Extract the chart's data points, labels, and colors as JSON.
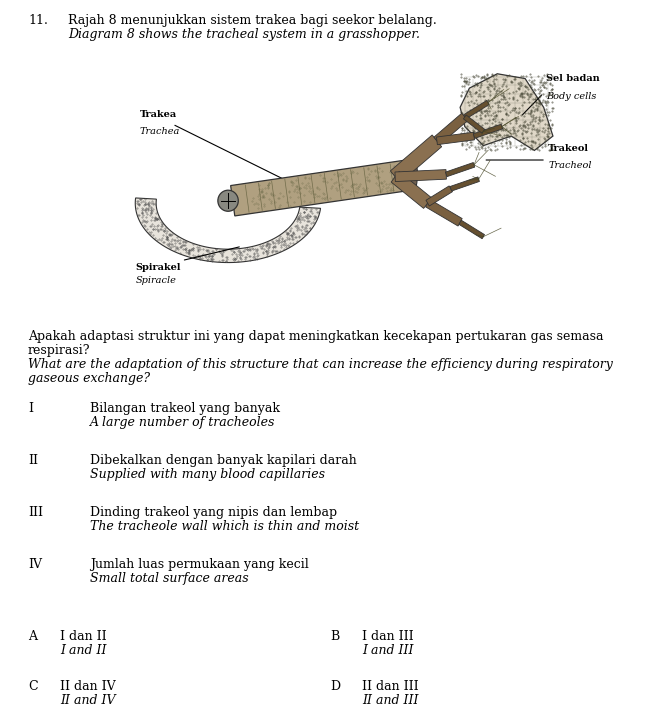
{
  "bg_color": "#ffffff",
  "page_bg": "#f5f0e8",
  "question_number": "11.",
  "title_malay": "Rajah 8 menunjukkan sistem trakea bagi seekor belalang.",
  "title_english": "Diagram 8 shows the tracheal system in a grasshopper.",
  "question_malay_line1": "Apakah adaptasi struktur ini yang dapat meningkatkan kecekapan pertukaran gas semasa",
  "question_malay_line2": "respirasi?",
  "question_english_line1": "What are the adaptation of this structure that can increase the efficiency during respiratory",
  "question_english_line2": "gaseous exchange?",
  "options": [
    {
      "roman": "I",
      "text_malay": "Bilangan trakeol yang banyak",
      "text_english": "A large number of tracheoles"
    },
    {
      "roman": "II",
      "text_malay": "Dibekalkan dengan banyak kapilari darah",
      "text_english": "Supplied with many blood capillaries"
    },
    {
      "roman": "III",
      "text_malay": "Dinding trakeol yang nipis dan lembap",
      "text_english": "The tracheole wall which is thin and moist"
    },
    {
      "roman": "IV",
      "text_malay": "Jumlah luas permukaan yang kecil",
      "text_english": "Small total surface areas"
    }
  ],
  "answers": [
    {
      "letter": "A",
      "text_malay": "I dan II",
      "text_english": "I and II",
      "col": 0
    },
    {
      "letter": "B",
      "text_malay": "I dan III",
      "text_english": "I and III",
      "col": 1
    },
    {
      "letter": "C",
      "text_malay": "II dan IV",
      "text_english": "II and IV",
      "col": 0
    },
    {
      "letter": "D",
      "text_malay": "II dan III",
      "text_english": "II and III",
      "col": 1
    }
  ],
  "diagram": {
    "trakea_label": "Trakea",
    "trachea_label": "Trachea",
    "spirakel_label": "Spirakel",
    "spiracle_label": "Spiracle",
    "sel_badan_label": "Sel badan",
    "body_cells_label": "Body cells",
    "trakeol_label": "Trakeol",
    "tracheol_label": "Tracheol"
  }
}
